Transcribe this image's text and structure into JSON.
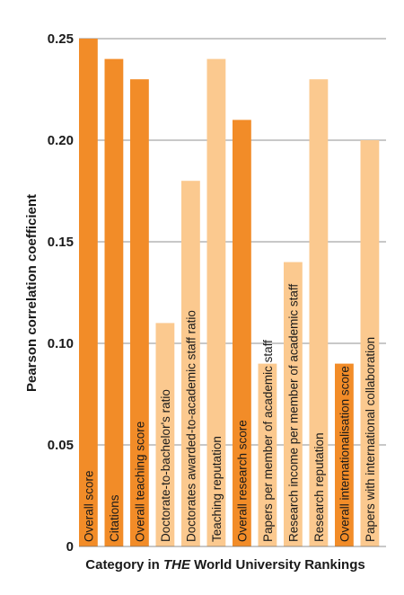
{
  "chart_data": {
    "type": "bar",
    "xlabel_parts": [
      "Category in ",
      "THE",
      " World University Rankings"
    ],
    "ylabel": "Pearson correlation coefficient",
    "ylim": [
      0,
      0.25
    ],
    "yticks": [
      "0",
      "0.05",
      "0.10",
      "0.15",
      "0.20",
      "0.25"
    ],
    "grid": "horizontal",
    "colors": {
      "dark": "#f28c28",
      "light": "#fbc98f"
    },
    "categories": [
      "Overall score",
      "Citations",
      "Overall teaching score",
      "Doctorate-to-bachelor's ratio",
      "Doctorates awarded-to-academic staff ratio",
      "Teaching reputation",
      "Overall research score",
      "Papers per member of academic staff",
      "Research income per member of academic staff",
      "Research reputation",
      "Overall internationalisation score",
      "Papers with international collaboration"
    ],
    "values": [
      0.25,
      0.24,
      0.23,
      0.11,
      0.18,
      0.24,
      0.21,
      0.09,
      0.14,
      0.23,
      0.09,
      0.2
    ],
    "shades": [
      "dark",
      "dark",
      "dark",
      "light",
      "light",
      "light",
      "dark",
      "light",
      "light",
      "light",
      "dark",
      "light"
    ]
  }
}
